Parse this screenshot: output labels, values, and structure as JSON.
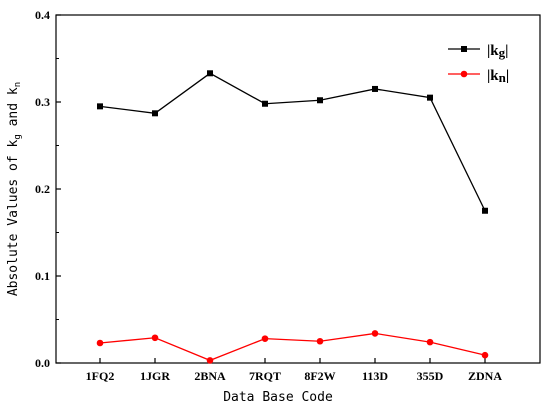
{
  "chart_data": {
    "type": "line",
    "categories": [
      "1FQ2",
      "1JGR",
      "2BNA",
      "7RQT",
      "8F2W",
      "113D",
      "355D",
      "ZDNA"
    ],
    "series": [
      {
        "name": "|kg|",
        "color": "#000000",
        "marker": "square",
        "values": [
          0.295,
          0.287,
          0.333,
          0.298,
          0.302,
          0.315,
          0.305,
          0.175
        ]
      },
      {
        "name": "|kn|",
        "color": "#ff0000",
        "marker": "circle",
        "values": [
          0.023,
          0.029,
          0.003,
          0.028,
          0.025,
          0.034,
          0.024,
          0.009
        ]
      }
    ],
    "xlabel": "Data Base Code",
    "ylabel": "Absolute Values of k_g and k_n",
    "ylim": [
      0,
      0.4
    ],
    "yticks": [
      "0.0",
      "0.1",
      "0.2",
      "0.3",
      "0.4"
    ],
    "legend_position": "top-right",
    "grid": false
  }
}
